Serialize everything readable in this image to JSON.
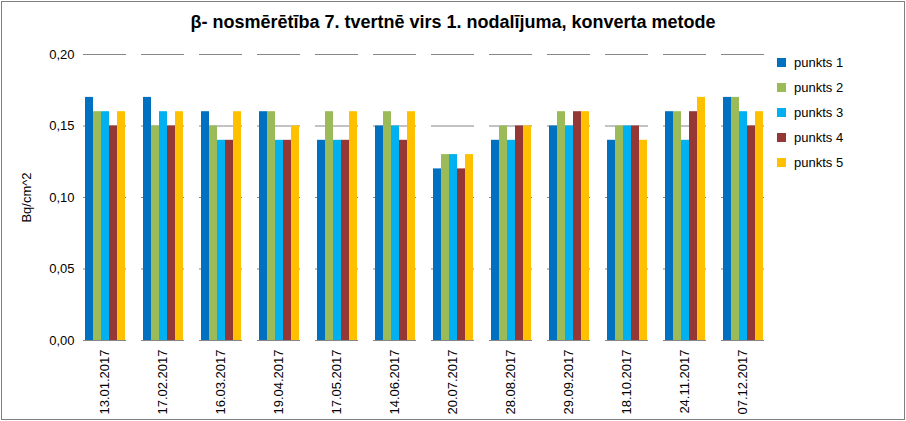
{
  "chart_data": {
    "type": "bar",
    "title": "β- nosmērētība 7. tvertnē virs 1. nodalījuma,   konverta metode",
    "y_label": "Bq/cm^2",
    "categories": [
      "13.01.2017",
      "17.02.2017",
      "16.03.2017",
      "19.04.2017",
      "17.05.2017",
      "14.06.2017",
      "20.07.2017",
      "28.08.2017",
      "29.09.2017",
      "18.10.2017",
      "24.11.2017",
      "07.12.2017"
    ],
    "series": [
      {
        "name": "punkts 1",
        "color": "#0070c0",
        "values": [
          0.17,
          0.17,
          0.16,
          0.16,
          0.14,
          0.15,
          0.12,
          0.14,
          0.15,
          0.14,
          0.16,
          0.17
        ]
      },
      {
        "name": "punkts 2",
        "color": "#9bbb59",
        "values": [
          0.16,
          0.15,
          0.15,
          0.16,
          0.16,
          0.16,
          0.13,
          0.15,
          0.16,
          0.15,
          0.16,
          0.17
        ]
      },
      {
        "name": "punkts 3",
        "color": "#00b0f0",
        "values": [
          0.16,
          0.16,
          0.14,
          0.14,
          0.14,
          0.15,
          0.13,
          0.14,
          0.15,
          0.15,
          0.14,
          0.16
        ]
      },
      {
        "name": "punkts 4",
        "color": "#953735",
        "values": [
          0.15,
          0.15,
          0.14,
          0.14,
          0.14,
          0.14,
          0.12,
          0.15,
          0.16,
          0.15,
          0.16,
          0.15
        ]
      },
      {
        "name": "punkts 5",
        "color": "#ffc000",
        "values": [
          0.16,
          0.16,
          0.16,
          0.15,
          0.16,
          0.16,
          0.13,
          0.15,
          0.16,
          0.14,
          0.17,
          0.16
        ]
      }
    ],
    "ylim": [
      0,
      0.2
    ],
    "yticks": [
      {
        "value": 0,
        "label": "0,00"
      },
      {
        "value": 0.05,
        "label": "0,05"
      },
      {
        "value": 0.1,
        "label": "0,10"
      },
      {
        "value": 0.15,
        "label": "0,15"
      },
      {
        "value": 0.2,
        "label": "0,20"
      }
    ],
    "grid": true,
    "legend": "right"
  }
}
